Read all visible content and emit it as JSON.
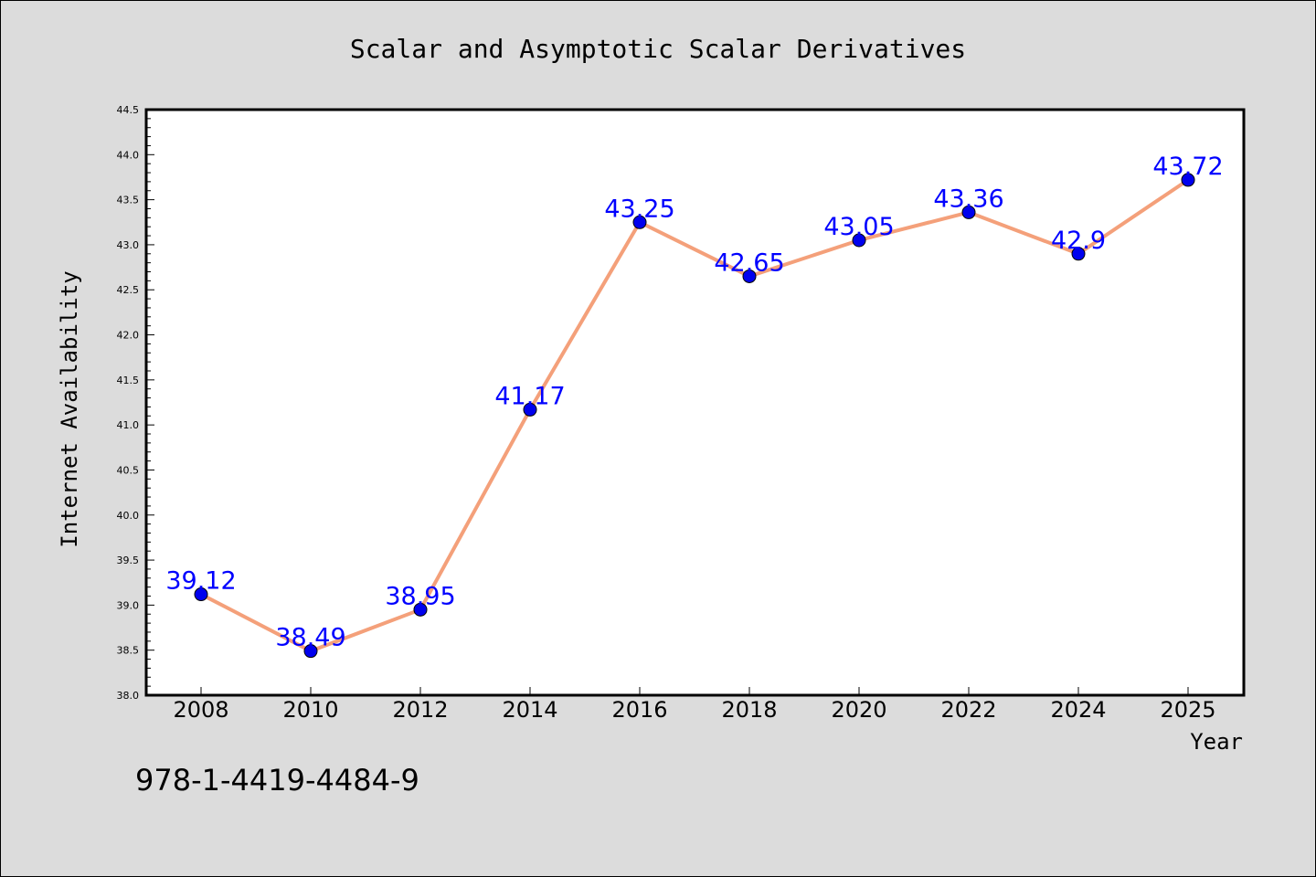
{
  "chart_data": {
    "type": "line",
    "title": "Scalar and Asymptotic Scalar Derivatives",
    "xlabel": "Year",
    "ylabel": "Internet Availability",
    "categories": [
      "2008",
      "2010",
      "2012",
      "2014",
      "2016",
      "2018",
      "2020",
      "2022",
      "2024",
      "2025"
    ],
    "series": [
      {
        "values": [
          39.12,
          38.49,
          38.95,
          41.17,
          43.25,
          42.65,
          43.05,
          43.36,
          42.9,
          43.72
        ],
        "labels": [
          "39.12",
          "38.49",
          "38.95",
          "41.17",
          "43.25",
          "42.65",
          "43.05",
          "43.36",
          "42.9",
          "43.72"
        ],
        "line_color": "#f4a07a",
        "marker_color": "#0000ee",
        "label_color": "#0000ff"
      }
    ],
    "ylim": [
      38.0,
      44.5
    ],
    "yticks": [
      "38.0",
      "38.5",
      "39.0",
      "39.5",
      "40.0",
      "40.5",
      "41.0",
      "41.5",
      "42.0",
      "42.5",
      "43.0",
      "43.5",
      "44.0",
      "44.5"
    ],
    "grid": false,
    "legend": "none"
  },
  "annotation": "978-1-4419-4484-9"
}
